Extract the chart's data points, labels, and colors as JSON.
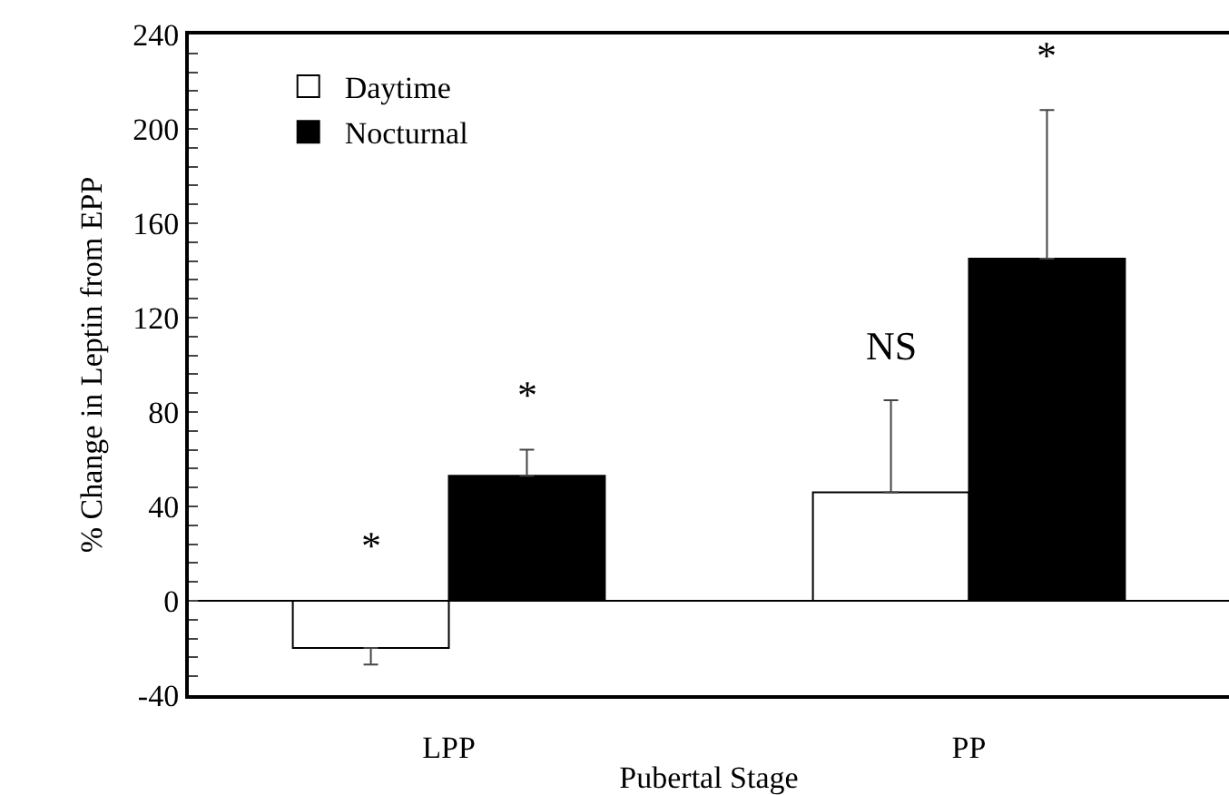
{
  "chart_data": {
    "type": "bar",
    "xlabel": "Pubertal Stage",
    "ylabel": "% Change in Leptin from EPP",
    "categories": [
      "LPP",
      "PP"
    ],
    "series": [
      {
        "name": "Daytime",
        "color": "#ffffff",
        "values": [
          -20,
          46
        ],
        "errors": [
          [
            -27,
            -20
          ],
          [
            46,
            85
          ]
        ]
      },
      {
        "name": "Nocturnal",
        "color": "#000000",
        "values": [
          53,
          145
        ],
        "errors": [
          [
            53,
            64
          ],
          [
            145,
            208
          ]
        ]
      }
    ],
    "ylim": [
      -40,
      240
    ],
    "yticks": [
      -40,
      {
        "value": -32,
        "label": null
      },
      {
        "value": -24,
        "label": null
      },
      {
        "value": -16,
        "label": null
      },
      {
        "value": -8,
        "label": null
      },
      0,
      {
        "value": 8,
        "label": null
      },
      {
        "value": 16,
        "label": null
      },
      {
        "value": 24,
        "label": null
      },
      {
        "value": 32,
        "label": null
      },
      40,
      {
        "value": 48,
        "label": null
      },
      {
        "value": 56,
        "label": null
      },
      {
        "value": 64,
        "label": null
      },
      {
        "value": 72,
        "label": null
      },
      80,
      {
        "value": 88,
        "label": null
      },
      {
        "value": 96,
        "label": null
      },
      {
        "value": 104,
        "label": null
      },
      {
        "value": 112,
        "label": null
      },
      120,
      {
        "value": 128,
        "label": null
      },
      {
        "value": 136,
        "label": null
      },
      {
        "value": 144,
        "label": null
      },
      {
        "value": 152,
        "label": null
      },
      160,
      {
        "value": 168,
        "label": null
      },
      {
        "value": 176,
        "label": null
      },
      {
        "value": 184,
        "label": null
      },
      {
        "value": 192,
        "label": null
      },
      200,
      {
        "value": 208,
        "label": null
      },
      {
        "value": 216,
        "label": null
      },
      {
        "value": 224,
        "label": null
      },
      {
        "value": 232,
        "label": null
      },
      240
    ],
    "annotations": [
      "*",
      "*",
      "NS",
      "*"
    ],
    "ref_lines": [
      {
        "axis": "y",
        "value": 0
      }
    ],
    "legend": "top left"
  }
}
